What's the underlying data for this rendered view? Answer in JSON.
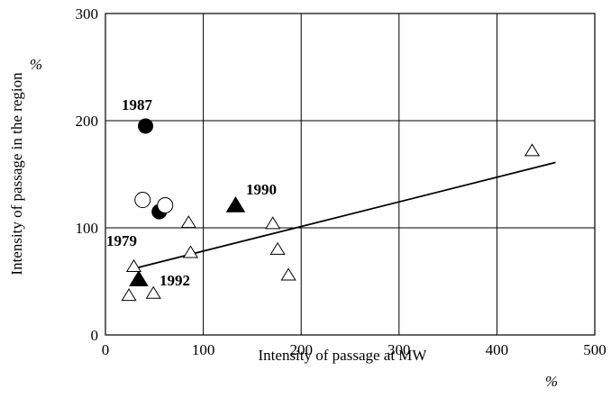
{
  "chart_data": {
    "type": "scatter",
    "x_label": "Intensity of passage at MW",
    "y_label": "Intensity of passage in the region",
    "x_unit": "%",
    "y_unit": "%",
    "xlim": [
      0,
      500
    ],
    "ylim": [
      0,
      300
    ],
    "xticks": [
      0,
      100,
      200,
      300,
      400,
      500
    ],
    "yticks": [
      0,
      100,
      200,
      300
    ],
    "grid": true,
    "series": [
      {
        "marker": "circle",
        "filled": true,
        "color": "#000000",
        "x": [
          41,
          55
        ],
        "y": [
          195,
          115
        ]
      },
      {
        "marker": "circle",
        "filled": false,
        "color": "#000000",
        "x": [
          38,
          61
        ],
        "y": [
          126,
          121
        ]
      },
      {
        "marker": "triangle",
        "filled": true,
        "color": "#000000",
        "x": [
          133,
          34
        ],
        "y": [
          121,
          52
        ]
      },
      {
        "marker": "triangle",
        "filled": false,
        "color": "#000000",
        "x": [
          436,
          85,
          87,
          29,
          24,
          49,
          171,
          176,
          187
        ],
        "y": [
          172,
          105,
          77,
          64,
          37,
          39,
          104,
          80,
          56
        ]
      }
    ],
    "trendline": {
      "x": [
        25,
        460
      ],
      "y": [
        61,
        161
      ]
    },
    "annotations": [
      "1987",
      "1979",
      "1990",
      "1992"
    ]
  }
}
